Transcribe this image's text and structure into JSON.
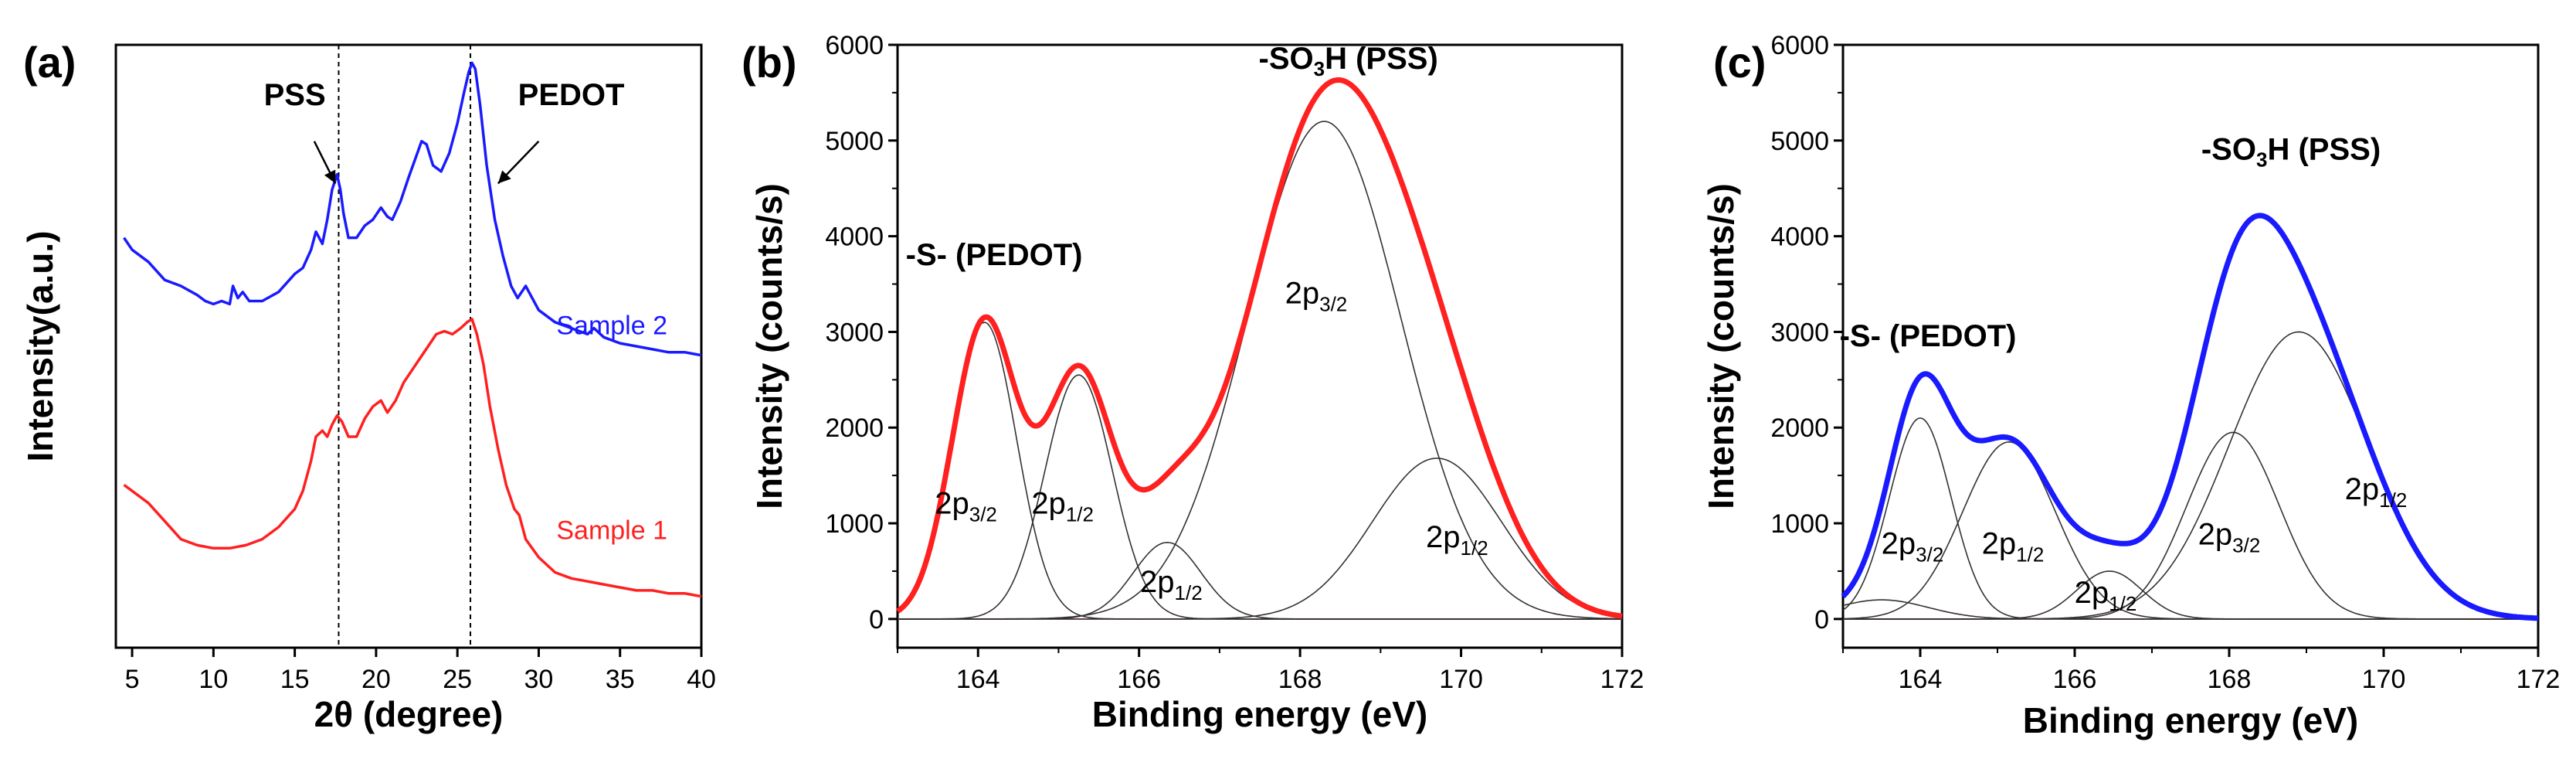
{
  "chart_data": [
    {
      "panel": "(a)",
      "type": "line",
      "xlabel": "2θ (degree)",
      "ylabel": "Intensity(a.u.)",
      "xlim": [
        4,
        40
      ],
      "xticks": [
        5,
        10,
        15,
        20,
        25,
        30,
        35,
        40
      ],
      "ylim": [
        0,
        100
      ],
      "show_y_ticks": false,
      "reference_lines": [
        17.7,
        25.8
      ],
      "annotations": [
        {
          "id": "pss",
          "text": "PSS",
          "at": [
            15.0,
            90
          ],
          "arrow_from": [
            16.2,
            84
          ],
          "arrow_to": [
            17.5,
            77
          ]
        },
        {
          "id": "pedot",
          "text": "PEDOT",
          "at": [
            32.0,
            90
          ],
          "arrow_from": [
            30.0,
            84
          ],
          "arrow_to": [
            27.5,
            77
          ]
        }
      ],
      "series": [
        {
          "name": "Sample 2",
          "color": "#1a1aff",
          "label_at": [
            34.5,
            52
          ],
          "x": [
            4.5,
            5,
            6,
            7,
            8,
            9,
            9.5,
            10,
            10.5,
            11,
            11.2,
            11.5,
            11.8,
            12.2,
            13,
            14,
            15,
            15.5,
            16,
            16.3,
            16.7,
            17,
            17.3,
            17.6,
            17.8,
            18,
            18.3,
            18.8,
            19.3,
            19.8,
            20.3,
            20.7,
            21,
            21.5,
            22,
            22.4,
            22.8,
            23.1,
            23.5,
            24,
            24.5,
            25,
            25.4,
            25.7,
            25.9,
            26.1,
            26.4,
            26.8,
            27.3,
            27.8,
            28.3,
            28.7,
            29.2,
            30,
            31,
            32,
            33,
            33.4,
            34,
            35,
            36,
            37,
            38,
            39,
            40
          ],
          "y": [
            68,
            66,
            64,
            61,
            60,
            58.5,
            57.5,
            57,
            57.5,
            57,
            60,
            58,
            59,
            57.5,
            57.5,
            59,
            62,
            63,
            66,
            69,
            67,
            71,
            76,
            78.5,
            76,
            72,
            68,
            68,
            70,
            71,
            73,
            71.5,
            71,
            74,
            78,
            81,
            84,
            83.5,
            80,
            79,
            82,
            87,
            92,
            95.5,
            97,
            96,
            90,
            80,
            71,
            65,
            60,
            58,
            60,
            56,
            54,
            53,
            52,
            53,
            51.5,
            50.5,
            50,
            49.5,
            49,
            49,
            48.5
          ]
        },
        {
          "name": "Sample 1",
          "color": "#ff2020",
          "label_at": [
            34.5,
            18
          ],
          "x": [
            4.5,
            5,
            6,
            7,
            8,
            9,
            10,
            11,
            12,
            13,
            14,
            15,
            15.5,
            16,
            16.3,
            16.7,
            17,
            17.3,
            17.6,
            17.9,
            18.3,
            18.8,
            19.3,
            19.8,
            20.3,
            20.7,
            21.2,
            21.7,
            22.2,
            22.7,
            23.2,
            23.7,
            24.2,
            24.7,
            25.2,
            25.6,
            25.9,
            26.2,
            26.6,
            27,
            27.5,
            28,
            28.5,
            28.8,
            29.2,
            30,
            31,
            32,
            33,
            34,
            35,
            36,
            37,
            38,
            39,
            40
          ],
          "y": [
            27,
            26,
            24,
            21,
            18,
            17,
            16.5,
            16.5,
            17,
            18,
            20,
            23,
            26,
            31,
            35,
            36,
            35,
            37,
            38.5,
            37.5,
            35,
            35,
            38,
            40,
            41,
            39,
            41,
            44,
            46,
            48,
            50,
            52,
            52.5,
            52,
            53,
            54,
            54.5,
            52,
            47,
            40,
            33,
            27,
            23,
            22,
            18,
            15,
            12.5,
            11.5,
            11,
            10.5,
            10,
            9.5,
            9.5,
            9,
            9,
            8.5
          ]
        }
      ]
    },
    {
      "panel": "(b)",
      "type": "line",
      "xlabel": "Binding energy (eV)",
      "ylabel": "Intensity (counts/s)",
      "xlim": [
        163,
        172
      ],
      "xticks": [
        164,
        166,
        168,
        170,
        172
      ],
      "ylim": [
        -300,
        6000
      ],
      "yticks": [
        0,
        1000,
        2000,
        3000,
        4000,
        5000,
        6000
      ],
      "baseline_color": "#ff9a9a",
      "envelope_color": "#ff2020",
      "components": [
        {
          "center": 164.08,
          "amp": 3100,
          "sigma": 0.4
        },
        {
          "center": 165.25,
          "amp": 2550,
          "sigma": 0.42
        },
        {
          "center": 166.35,
          "amp": 800,
          "sigma": 0.42
        },
        {
          "center": 168.3,
          "amp": 5200,
          "sigma": 0.95
        },
        {
          "center": 169.7,
          "amp": 1680,
          "sigma": 0.8
        }
      ],
      "labels": [
        {
          "text": "-S- (PEDOT)",
          "x": 164.2,
          "y": 3700
        },
        {
          "text": "-SO3H (PSS)",
          "x": 168.6,
          "y": 5750
        },
        {
          "text": "2p3/2",
          "x": 168.2,
          "y": 3300
        },
        {
          "text": "2p3/2",
          "x": 163.85,
          "y": 1100
        },
        {
          "text": "2p1/2",
          "x": 165.05,
          "y": 1100
        },
        {
          "text": "2p1/2",
          "x": 166.4,
          "y": 280
        },
        {
          "text": "2p1/2",
          "x": 169.95,
          "y": 750
        }
      ]
    },
    {
      "panel": "(c)",
      "type": "line",
      "xlabel": "Binding energy (eV)",
      "ylabel": "Intensity (counts/s)",
      "xlim": [
        163,
        172
      ],
      "xticks": [
        164,
        166,
        168,
        170,
        172
      ],
      "ylim": [
        -300,
        6000
      ],
      "yticks": [
        0,
        1000,
        2000,
        3000,
        4000,
        5000,
        6000
      ],
      "baseline_color": "#ff9a9a",
      "envelope_color": "#1a1aff",
      "components": [
        {
          "center": 163.5,
          "amp": 200,
          "sigma": 0.6
        },
        {
          "center": 164.0,
          "amp": 2100,
          "sigma": 0.4
        },
        {
          "center": 165.15,
          "amp": 1850,
          "sigma": 0.6
        },
        {
          "center": 166.45,
          "amp": 500,
          "sigma": 0.42
        },
        {
          "center": 168.05,
          "amp": 1950,
          "sigma": 0.6
        },
        {
          "center": 168.9,
          "amp": 3000,
          "sigma": 0.9
        }
      ],
      "labels": [
        {
          "text": "-S- (PEDOT)",
          "x": 164.1,
          "y": 2850
        },
        {
          "text": "-SO3H (PSS)",
          "x": 168.8,
          "y": 4800
        },
        {
          "text": "2p3/2",
          "x": 163.9,
          "y": 680
        },
        {
          "text": "2p1/2",
          "x": 165.2,
          "y": 680
        },
        {
          "text": "2p1/2",
          "x": 166.4,
          "y": 170
        },
        {
          "text": "2p3/2",
          "x": 168.0,
          "y": 780
        },
        {
          "text": "2p1/2",
          "x": 169.9,
          "y": 1250
        }
      ]
    }
  ]
}
